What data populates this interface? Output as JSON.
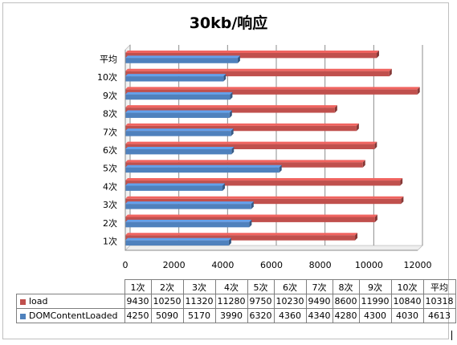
{
  "chart_data": {
    "type": "bar",
    "orientation": "horizontal",
    "title": "30kb/响应",
    "categories": [
      "1次",
      "2次",
      "3次",
      "4次",
      "5次",
      "6次",
      "7次",
      "8次",
      "9次",
      "10次",
      "平均"
    ],
    "series": [
      {
        "name": "load",
        "color": "#c0504d",
        "values": [
          9430,
          10250,
          11320,
          11280,
          9750,
          10230,
          9490,
          8600,
          11990,
          10840,
          10318
        ]
      },
      {
        "name": "DOMContentLoaded",
        "color": "#4f81bd",
        "values": [
          4250,
          5090,
          5170,
          3990,
          6320,
          4360,
          4340,
          4280,
          4300,
          4030,
          4613
        ]
      }
    ],
    "xlim": [
      0,
      12000
    ],
    "x_ticks": [
      "0",
      "2000",
      "4000",
      "6000",
      "8000",
      "10000",
      "12000"
    ],
    "grid": true,
    "legend": "data-table"
  }
}
